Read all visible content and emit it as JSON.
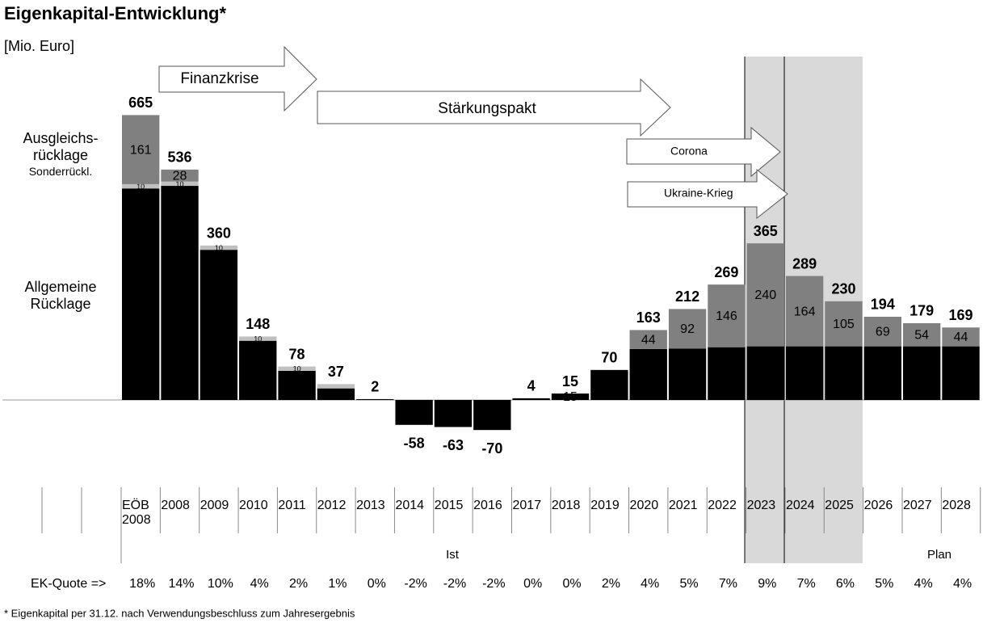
{
  "chart_data": {
    "type": "stacked_bar",
    "title": "Eigenkapital-Entwicklung*",
    "subtitle": "[Mio. Euro]",
    "footnote": "* Eigenkapital per 31.12. nach Verwendungsbeschluss zum Jahresergebnis",
    "categories": [
      "EÖB\n2008",
      "2008",
      "2009",
      "2010",
      "2011",
      "2012",
      "2013",
      "2014",
      "2015",
      "2016",
      "2017",
      "2018",
      "2019",
      "2020",
      "2021",
      "2022",
      "2023",
      "2024",
      "2025",
      "2026",
      "2027",
      "2028"
    ],
    "series": [
      {
        "name": "Allgemeine\nRücklage",
        "color": "#000000",
        "values": [
          493,
          499,
          350,
          138,
          68,
          27,
          2,
          -58,
          -63,
          -70,
          4,
          15,
          70,
          119,
          120,
          123,
          125,
          125,
          125,
          125,
          125,
          125
        ],
        "value_labels": [
          "493",
          "499",
          "350",
          "138",
          "68",
          null,
          null,
          "-58",
          "-63",
          "-70",
          null,
          "15",
          "70",
          "119",
          "120",
          "123",
          "125",
          "125",
          "125",
          "125",
          "125",
          "125"
        ]
      },
      {
        "name": "Sonderrückl.",
        "color": "#c0c0c0",
        "values": [
          10,
          10,
          10,
          10,
          10,
          10,
          null,
          null,
          null,
          null,
          null,
          null,
          null,
          null,
          null,
          null,
          null,
          null,
          null,
          null,
          null,
          null
        ],
        "value_labels": [
          "10",
          "10",
          "10",
          "10",
          "10",
          null,
          null,
          null,
          null,
          null,
          null,
          null,
          null,
          null,
          null,
          null,
          null,
          null,
          null,
          null,
          null,
          null
        ]
      },
      {
        "name": "Ausgleichs-\nrücklage",
        "color": "#808080",
        "values": [
          161,
          28,
          null,
          null,
          null,
          null,
          null,
          null,
          null,
          null,
          null,
          null,
          null,
          44,
          92,
          146,
          240,
          164,
          105,
          69,
          54,
          44
        ],
        "value_labels": [
          "161",
          "28",
          null,
          null,
          null,
          null,
          null,
          null,
          null,
          null,
          null,
          null,
          null,
          "44",
          "92",
          "146",
          "240",
          "164",
          "105",
          "69",
          "54",
          "44"
        ]
      }
    ],
    "totals": [
      665,
      536,
      360,
      148,
      78,
      37,
      2,
      -58,
      -63,
      -70,
      4,
      15,
      70,
      163,
      212,
      269,
      365,
      289,
      230,
      194,
      179,
      169
    ],
    "annotations": [
      "Finanzkrise",
      "Stärkungspakt",
      "Corona",
      "Ukraine-Krieg"
    ],
    "periods": [
      "Ist",
      "Plan"
    ],
    "ratio_label": "EK-Quote =>",
    "ratio": [
      "18%",
      "14%",
      "10%",
      "4%",
      "2%",
      "1%",
      "0%",
      "-2%",
      "-2%",
      "-2%",
      "0%",
      "0%",
      "2%",
      "4%",
      "5%",
      "7%",
      "9%",
      "7%",
      "6%",
      "5%",
      "4%",
      "4%"
    ]
  }
}
